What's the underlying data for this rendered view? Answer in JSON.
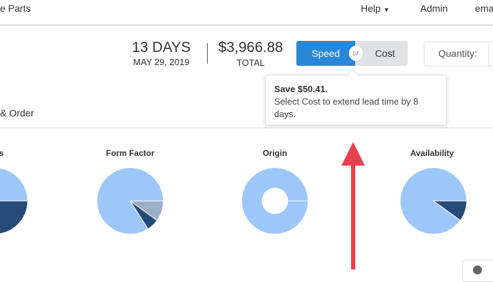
{
  "header": {
    "app_title": "e Parts",
    "help": "Help",
    "admin": "Admin",
    "email": "ema"
  },
  "summary": {
    "days": "13 DAYS",
    "date": "MAY 29, 2019",
    "price": "$3,966.88",
    "total_label": "TOTAL"
  },
  "toggle": {
    "speed": "Speed",
    "or": "or",
    "cost": "Cost",
    "selected": "Speed",
    "speed_color": "#2a87d8"
  },
  "quantity": {
    "label": "Quantity:"
  },
  "tooltip": {
    "title": "Save $50.41.",
    "body": "Select Cost to extend lead time by 8 days."
  },
  "section": {
    "tab_label": "& Order"
  },
  "charts": [
    {
      "title": "ts",
      "slices": [
        {
          "fraction": 0.28,
          "color": "#274b78"
        },
        {
          "fraction": 0.72,
          "color": "#9dc7f8"
        }
      ],
      "donut": false
    },
    {
      "title": "Form Factor",
      "slices": [
        {
          "fraction": 0.1,
          "color": "#9bb0c8"
        },
        {
          "fraction": 0.06,
          "color": "#274b78"
        },
        {
          "fraction": 0.84,
          "color": "#9dc7f8"
        }
      ],
      "donut": false
    },
    {
      "title": "Origin",
      "slices": [
        {
          "fraction": 1.0,
          "color": "#9dc7f8"
        }
      ],
      "donut": true
    },
    {
      "title": "Availability",
      "slices": [
        {
          "fraction": 0.1,
          "color": "#274b78"
        },
        {
          "fraction": 0.9,
          "color": "#9dc7f8"
        }
      ],
      "donut": false
    }
  ],
  "annotation": {
    "arrow_color": "#e8404f"
  }
}
